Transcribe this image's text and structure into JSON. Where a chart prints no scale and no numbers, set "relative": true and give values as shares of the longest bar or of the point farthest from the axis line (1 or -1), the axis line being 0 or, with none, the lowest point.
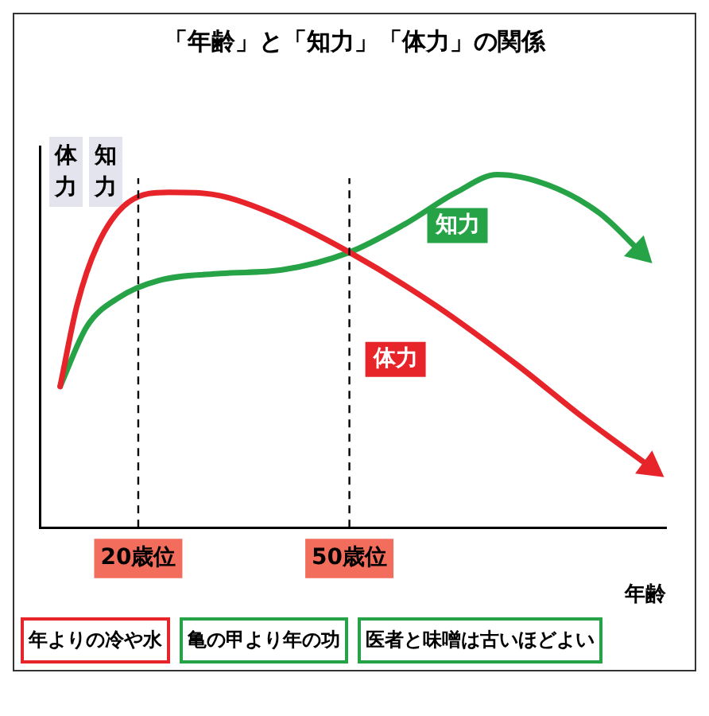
{
  "chart_data": {
    "type": "line",
    "title": "「年齢」と「知力」「体力」の関係",
    "xlabel": "年齢",
    "relative": true,
    "xlim": [
      6,
      95
    ],
    "xticks": [
      {
        "value": 20,
        "label": "20歳位"
      },
      {
        "value": 50,
        "label": "50歳位"
      }
    ],
    "grid": false,
    "legend": false,
    "marker": "none",
    "line_style": "solid",
    "series": [
      {
        "name": "体力",
        "color": "#e8242b",
        "x": [
          8.9,
          11.3,
          14.2,
          18.5,
          24.4,
          31.7,
          39.0,
          50.0,
          62.2,
          73.9,
          82.7,
          92.9
        ],
        "values": [
          0.4,
          0.63,
          0.8,
          0.92,
          0.95,
          0.94,
          0.89,
          0.78,
          0.63,
          0.46,
          0.32,
          0.17
        ]
      },
      {
        "name": "知力",
        "color": "#27a347",
        "x": [
          8.9,
          12.7,
          17.1,
          22.9,
          31.7,
          40.4,
          50.0,
          57.9,
          65.2,
          71.0,
          78.3,
          85.6,
          91.4
        ],
        "values": [
          0.4,
          0.57,
          0.65,
          0.7,
          0.72,
          0.73,
          0.78,
          0.86,
          0.95,
          1.0,
          0.97,
          0.89,
          0.78
        ]
      }
    ],
    "ref_lines": [
      {
        "axis": "x",
        "value": 20,
        "line_style": "dashed",
        "color": "#000000"
      },
      {
        "axis": "x",
        "value": 50,
        "line_style": "dashed",
        "color": "#000000"
      }
    ],
    "annotations": [
      "体力",
      "知力",
      "年よりの冷や水",
      "亀の甲より年の功",
      "医者と味噌は古いほどよい"
    ]
  }
}
